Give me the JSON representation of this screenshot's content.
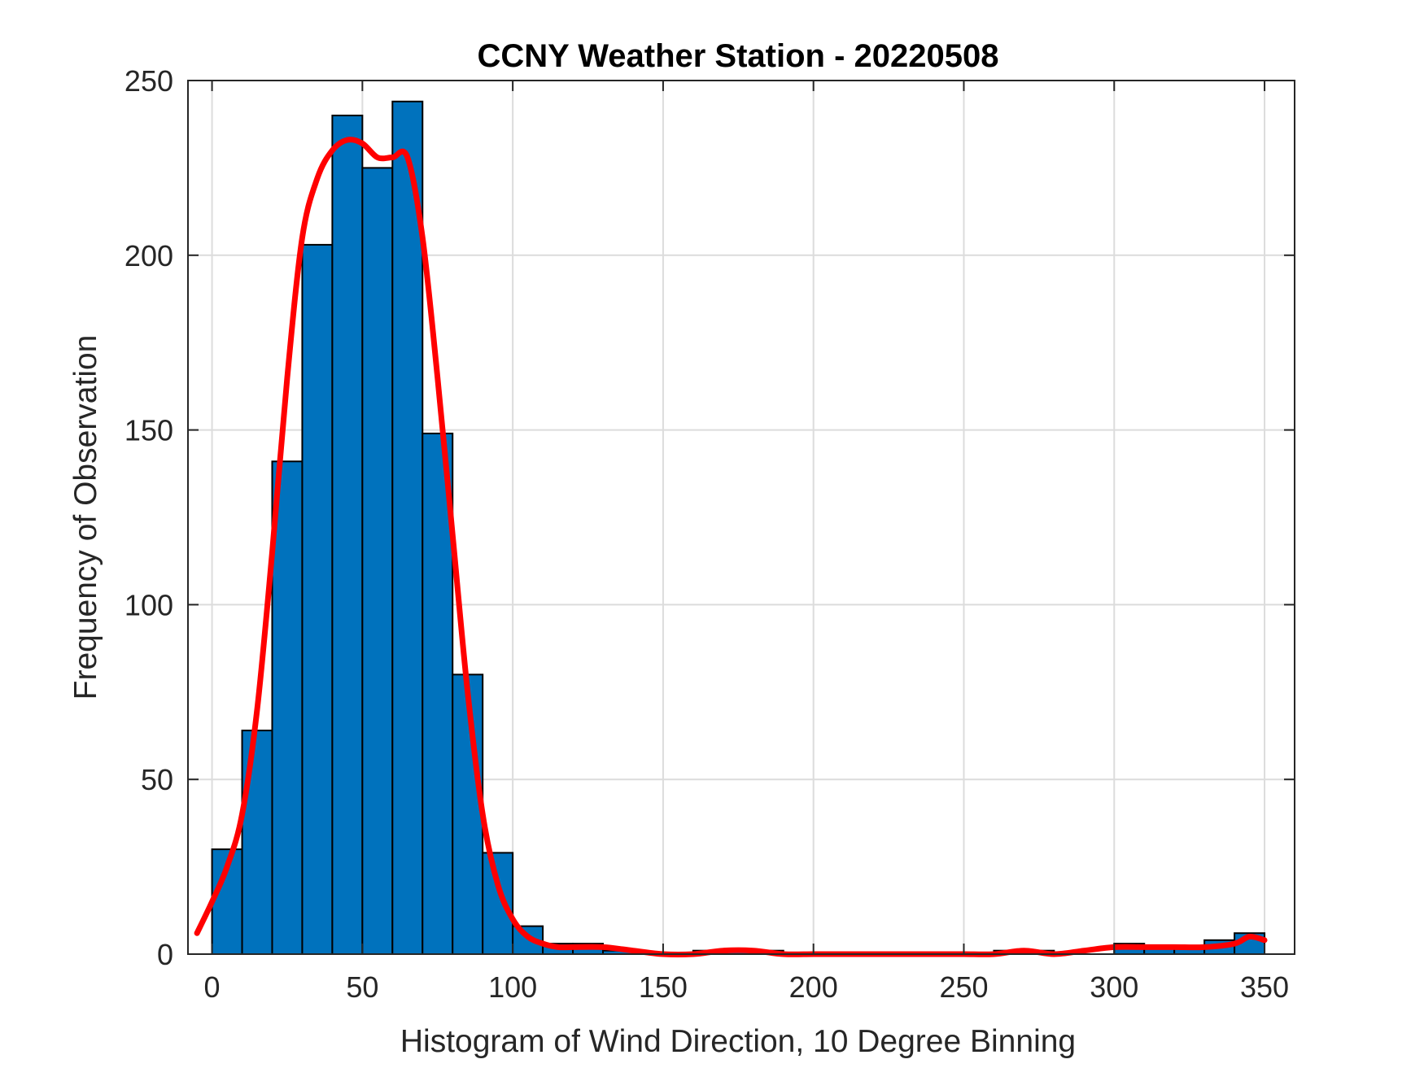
{
  "chart_data": {
    "type": "bar",
    "title": "CCNY Weather Station - 20220508",
    "xlabel": "Histogram of Wind Direction, 10 Degree Binning",
    "ylabel": "Frequency of Observation",
    "xlim": [
      -8,
      360
    ],
    "ylim": [
      0,
      250
    ],
    "xticks": [
      0,
      50,
      100,
      150,
      200,
      250,
      300,
      350
    ],
    "yticks": [
      0,
      50,
      100,
      150,
      200,
      250
    ],
    "grid": true,
    "bin_width": 10,
    "bins": {
      "left_edges": [
        0,
        10,
        20,
        30,
        40,
        50,
        60,
        70,
        80,
        90,
        100,
        110,
        120,
        130,
        140,
        150,
        160,
        170,
        180,
        190,
        200,
        210,
        220,
        230,
        240,
        250,
        260,
        270,
        280,
        290,
        300,
        310,
        320,
        330,
        340
      ],
      "counts": [
        30,
        64,
        141,
        203,
        240,
        225,
        244,
        149,
        80,
        29,
        8,
        3,
        3,
        1,
        0,
        0,
        1,
        1,
        1,
        0,
        0,
        0,
        0,
        0,
        0,
        0,
        1,
        1,
        0,
        0,
        3,
        2,
        2,
        4,
        6
      ]
    },
    "density_curve": {
      "x": [
        -5,
        0,
        5,
        10,
        15,
        20,
        25,
        30,
        35,
        40,
        45,
        50,
        55,
        60,
        65,
        70,
        75,
        80,
        85,
        90,
        95,
        100,
        105,
        110,
        115,
        120,
        130,
        140,
        150,
        160,
        170,
        180,
        190,
        200,
        210,
        220,
        230,
        240,
        250,
        260,
        270,
        280,
        290,
        300,
        310,
        320,
        330,
        340,
        345,
        350
      ],
      "y": [
        6,
        15,
        25,
        40,
        70,
        115,
        165,
        205,
        222,
        230,
        233,
        232,
        228,
        228,
        228,
        205,
        165,
        120,
        75,
        40,
        20,
        10,
        5,
        3,
        2,
        2,
        2,
        1,
        0,
        0,
        1,
        1,
        0,
        0,
        0,
        0,
        0,
        0,
        0,
        0,
        1,
        0,
        1,
        2,
        2,
        2,
        2,
        3,
        5,
        4
      ]
    },
    "colors": {
      "bar_fill": "#0072BD",
      "bar_edge": "#000000",
      "curve": "#FF0000",
      "grid": "#DCDCDC",
      "axis": "#262626"
    }
  }
}
